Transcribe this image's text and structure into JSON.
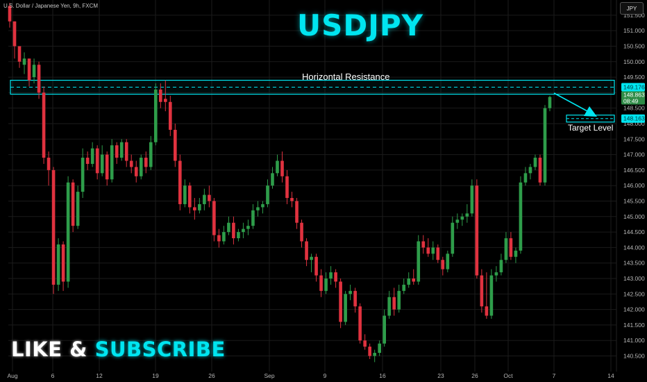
{
  "header": {
    "symbol_description": "U.S. Dollar / Japanese Yen, 9h, FXCM",
    "title": "USDJPY",
    "currency_button": "JPY"
  },
  "annotations": {
    "resistance_label": "Horizontal Resistance",
    "target_label": "Target Level"
  },
  "promo": {
    "word1": "LIKE",
    "word2": "&",
    "word3": "SUBSCRIBE"
  },
  "colors": {
    "background": "#000000",
    "bull": "#2e9d4a",
    "bear": "#e0323f",
    "accent": "#00e5f0",
    "grid": "#1b1b1b"
  },
  "chart_data": {
    "type": "candlestick",
    "timeframe": "9h",
    "ylim": [
      140.2,
      151.9
    ],
    "y_ticks": [
      "151.500",
      "151.000",
      "150.500",
      "150.000",
      "149.500",
      "149.000",
      "148.500",
      "148.000",
      "147.500",
      "147.000",
      "146.500",
      "146.000",
      "145.500",
      "145.000",
      "144.500",
      "144.000",
      "143.500",
      "143.000",
      "142.500",
      "142.000",
      "141.500",
      "141.000",
      "140.500"
    ],
    "x_labels": [
      "Aug",
      "6",
      "12",
      "19",
      "26",
      "Sep",
      "9",
      "16",
      "23",
      "26",
      "Oct",
      "7",
      "14"
    ],
    "price_labels": {
      "resistance": "149.176",
      "current_price": "148.863",
      "countdown": "08:49",
      "target": "148.163"
    },
    "resistance_zone": {
      "level": 149.176,
      "top": 149.4,
      "bottom": 148.95
    },
    "target_level": 148.163,
    "candles_ohlc": [
      [
        151.8,
        151.9,
        151.1,
        151.3
      ],
      [
        151.3,
        151.3,
        150.1,
        150.5
      ],
      [
        150.5,
        150.5,
        149.8,
        150.0
      ],
      [
        149.9,
        150.3,
        149.6,
        150.1
      ],
      [
        150.1,
        150.1,
        149.2,
        149.4
      ],
      [
        149.5,
        150.1,
        149.3,
        149.9
      ],
      [
        149.9,
        150.0,
        148.8,
        149.0
      ],
      [
        149.0,
        149.2,
        146.7,
        146.9
      ],
      [
        146.9,
        147.1,
        146.0,
        146.5
      ],
      [
        146.5,
        146.6,
        142.5,
        142.8
      ],
      [
        142.8,
        144.3,
        142.6,
        144.1
      ],
      [
        144.1,
        144.2,
        142.6,
        142.9
      ],
      [
        142.9,
        146.3,
        142.7,
        146.1
      ],
      [
        146.1,
        146.2,
        144.5,
        144.7
      ],
      [
        144.7,
        146.0,
        144.6,
        145.8
      ],
      [
        145.8,
        147.2,
        145.6,
        146.9
      ],
      [
        146.9,
        147.1,
        146.5,
        146.7
      ],
      [
        146.7,
        147.4,
        146.6,
        147.2
      ],
      [
        147.2,
        147.3,
        146.2,
        146.4
      ],
      [
        146.4,
        147.3,
        146.3,
        147.0
      ],
      [
        147.0,
        147.1,
        146.0,
        146.2
      ],
      [
        146.2,
        147.5,
        146.1,
        147.3
      ],
      [
        147.3,
        147.4,
        146.7,
        146.9
      ],
      [
        146.9,
        147.5,
        146.8,
        147.4
      ],
      [
        147.4,
        147.5,
        146.6,
        146.8
      ],
      [
        146.8,
        147.0,
        146.4,
        146.6
      ],
      [
        146.6,
        146.8,
        146.1,
        146.3
      ],
      [
        146.3,
        147.0,
        146.2,
        146.9
      ],
      [
        146.9,
        147.1,
        146.4,
        146.6
      ],
      [
        146.6,
        147.6,
        146.5,
        147.4
      ],
      [
        147.4,
        149.3,
        147.3,
        149.1
      ],
      [
        149.1,
        149.3,
        148.5,
        148.7
      ],
      [
        148.8,
        149.4,
        148.4,
        148.7
      ],
      [
        148.7,
        148.9,
        147.6,
        147.8
      ],
      [
        147.8,
        148.0,
        146.6,
        146.8
      ],
      [
        146.8,
        147.0,
        145.2,
        145.4
      ],
      [
        145.4,
        146.2,
        145.3,
        146.0
      ],
      [
        146.0,
        146.1,
        145.1,
        145.3
      ],
      [
        145.3,
        145.6,
        144.9,
        145.2
      ],
      [
        145.2,
        145.6,
        145.1,
        145.4
      ],
      [
        145.4,
        145.9,
        145.2,
        145.7
      ],
      [
        145.7,
        146.0,
        145.3,
        145.5
      ],
      [
        145.5,
        145.6,
        144.2,
        144.4
      ],
      [
        144.4,
        144.6,
        144.0,
        144.2
      ],
      [
        144.2,
        144.7,
        144.1,
        144.5
      ],
      [
        144.5,
        145.0,
        144.4,
        144.8
      ],
      [
        144.8,
        145.0,
        144.1,
        144.3
      ],
      [
        144.3,
        144.6,
        144.2,
        144.5
      ],
      [
        144.5,
        144.8,
        144.3,
        144.6
      ],
      [
        144.6,
        144.9,
        144.4,
        144.7
      ],
      [
        144.7,
        145.4,
        144.6,
        145.2
      ],
      [
        145.2,
        145.5,
        145.0,
        145.3
      ],
      [
        145.3,
        145.5,
        145.1,
        145.4
      ],
      [
        145.4,
        146.2,
        145.3,
        146.0
      ],
      [
        146.0,
        146.6,
        145.9,
        146.4
      ],
      [
        146.4,
        147.0,
        146.3,
        146.8
      ],
      [
        146.8,
        147.1,
        146.1,
        146.3
      ],
      [
        146.3,
        146.5,
        145.4,
        145.6
      ],
      [
        145.6,
        145.8,
        145.3,
        145.5
      ],
      [
        145.5,
        145.6,
        144.6,
        144.8
      ],
      [
        144.8,
        144.9,
        144.0,
        144.2
      ],
      [
        144.2,
        144.3,
        143.4,
        143.6
      ],
      [
        143.6,
        143.8,
        143.2,
        143.7
      ],
      [
        143.7,
        143.8,
        142.9,
        143.1
      ],
      [
        143.1,
        143.3,
        142.4,
        142.6
      ],
      [
        142.6,
        143.2,
        142.5,
        143.0
      ],
      [
        143.0,
        143.4,
        142.8,
        143.2
      ],
      [
        143.2,
        143.3,
        142.7,
        142.9
      ],
      [
        142.9,
        143.0,
        141.4,
        141.6
      ],
      [
        141.6,
        142.6,
        141.5,
        142.5
      ],
      [
        142.5,
        142.8,
        142.3,
        142.6
      ],
      [
        142.6,
        142.7,
        141.9,
        142.1
      ],
      [
        142.1,
        142.2,
        140.9,
        141.0
      ],
      [
        141.0,
        141.2,
        140.7,
        140.8
      ],
      [
        140.8,
        140.9,
        140.4,
        140.5
      ],
      [
        140.5,
        140.7,
        140.3,
        140.6
      ],
      [
        140.6,
        141.0,
        140.5,
        140.9
      ],
      [
        140.9,
        142.0,
        140.8,
        141.8
      ],
      [
        141.8,
        142.6,
        141.7,
        142.4
      ],
      [
        142.4,
        142.7,
        141.8,
        142.0
      ],
      [
        142.0,
        142.8,
        141.9,
        142.6
      ],
      [
        142.6,
        143.0,
        142.5,
        142.8
      ],
      [
        142.8,
        143.2,
        142.7,
        143.0
      ],
      [
        143.0,
        143.3,
        142.8,
        142.9
      ],
      [
        142.9,
        144.4,
        142.8,
        144.2
      ],
      [
        144.2,
        144.4,
        143.8,
        144.0
      ],
      [
        144.0,
        144.3,
        143.7,
        143.8
      ],
      [
        143.8,
        144.2,
        143.6,
        144.0
      ],
      [
        144.0,
        144.1,
        143.5,
        143.6
      ],
      [
        143.6,
        143.7,
        143.1,
        143.3
      ],
      [
        143.3,
        143.9,
        143.2,
        143.8
      ],
      [
        143.8,
        145.0,
        143.7,
        144.8
      ],
      [
        144.8,
        145.1,
        144.6,
        144.9
      ],
      [
        144.9,
        145.1,
        144.7,
        145.0
      ],
      [
        145.0,
        145.4,
        144.8,
        145.1
      ],
      [
        145.1,
        146.2,
        145.0,
        146.0
      ],
      [
        146.0,
        146.2,
        143.0,
        143.1
      ],
      [
        143.1,
        143.3,
        141.9,
        142.1
      ],
      [
        142.1,
        143.2,
        141.7,
        141.8
      ],
      [
        141.8,
        143.3,
        141.7,
        143.1
      ],
      [
        143.1,
        143.4,
        142.9,
        143.2
      ],
      [
        143.2,
        143.8,
        143.1,
        143.6
      ],
      [
        143.6,
        144.5,
        143.5,
        144.3
      ],
      [
        144.3,
        144.5,
        143.6,
        143.7
      ],
      [
        143.7,
        144.0,
        143.5,
        143.9
      ],
      [
        143.9,
        146.3,
        143.8,
        146.1
      ],
      [
        146.1,
        146.6,
        146.0,
        146.4
      ],
      [
        146.4,
        146.7,
        146.2,
        146.6
      ],
      [
        146.6,
        147.0,
        146.5,
        146.9
      ],
      [
        146.9,
        147.0,
        146.0,
        146.1
      ],
      [
        146.1,
        148.6,
        146.0,
        148.5
      ],
      [
        148.5,
        148.9,
        148.4,
        148.86
      ]
    ]
  }
}
